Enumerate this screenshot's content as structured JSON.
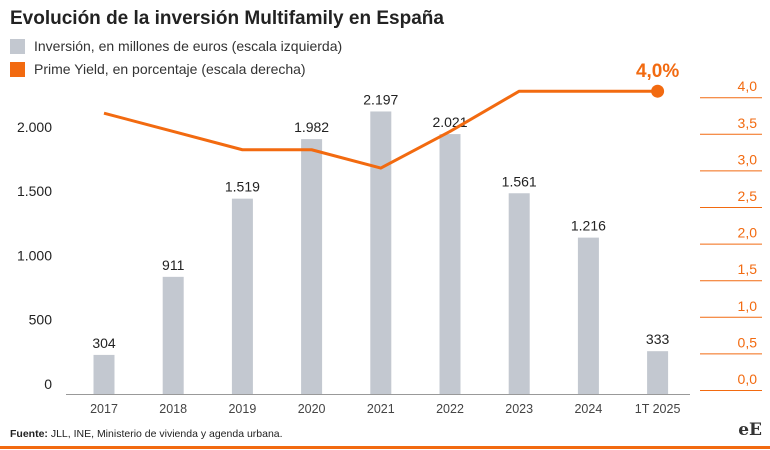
{
  "title": "Evolución de la inversión Multifamily en España",
  "legend": [
    {
      "label": "Inversión, en millones de euros (escala izquierda)",
      "color": "#c3c8d0"
    },
    {
      "label": "Prime Yield, en porcentaje (escala derecha)",
      "color": "#f26a10"
    }
  ],
  "source_label": "Fuente:",
  "source_text": " JLL, INE, Ministerio de vivienda y agenda urbana.",
  "logo_text": "eE",
  "chart_data": {
    "type": "bar",
    "categories": [
      "2017",
      "2018",
      "2019",
      "2020",
      "2021",
      "2022",
      "2023",
      "2024",
      "1T 2025"
    ],
    "series": [
      {
        "name": "Inversión, en millones de euros (escala izquierda)",
        "type": "bar",
        "axis": "left",
        "values": [
          304,
          911,
          1519,
          1982,
          2197,
          2021,
          1561,
          1216,
          333
        ],
        "labels": [
          "304",
          "911",
          "1.519",
          "1.982",
          "2.197",
          "2.021",
          "1.561",
          "1.216",
          "333"
        ]
      },
      {
        "name": "Prime Yield, en porcentaje (escala derecha)",
        "type": "line",
        "axis": "right",
        "values": [
          3.7,
          3.45,
          3.2,
          3.2,
          2.95,
          3.45,
          4.0,
          4.0,
          4.0
        ],
        "end_label": "4,0%"
      }
    ],
    "left_axis": {
      "range": [
        0,
        2500
      ],
      "ticks": [
        0,
        500,
        1000,
        1500,
        2000
      ],
      "tick_labels": [
        "0",
        "500",
        "1.000",
        "1.500",
        "2.000"
      ]
    },
    "right_axis": {
      "range": [
        0,
        4.0
      ],
      "ticks": [
        0,
        0.5,
        1.0,
        1.5,
        2.0,
        2.5,
        3.0,
        3.5,
        4.0
      ],
      "tick_labels": [
        "0,0",
        "0,5",
        "1,0",
        "1,5",
        "2,0",
        "2,5",
        "3,0",
        "3,5",
        "4,0"
      ]
    },
    "colors": {
      "bars": "#c3c8d0",
      "line": "#f26a10",
      "text": "#222222"
    },
    "grid": false
  }
}
